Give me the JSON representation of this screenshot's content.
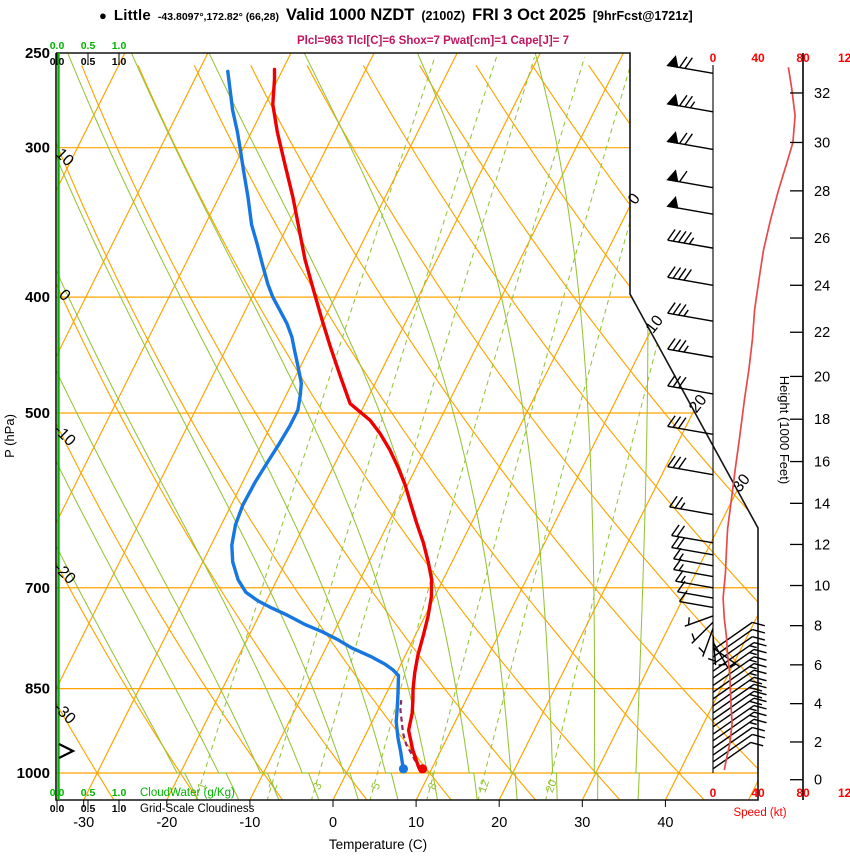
{
  "header": {
    "station": {
      "bullet": "●",
      "name": "Little",
      "coords": "-43.8097°,172.82° (66,28)"
    },
    "valid": {
      "main": "Valid 1000 NZDT",
      "zulu": "(2100Z)",
      "date": "FRI 3 Oct 2025",
      "fcst": "[9hrFcst@1721z]"
    },
    "params": "Plcl=963 Tlcl[C]=6 Shox=7 Pwat[cm]=1 Cape[J]= 7"
  },
  "colors": {
    "isolines": "#FFA400",
    "moist": "#94C436",
    "mixing": "#94C436",
    "cloudwater": "#00B400",
    "frame": "#141414",
    "temperature": "#EE0000",
    "dewpoint": "#1777E0",
    "parcel": "#8A2860",
    "speed_curve": "#E84A4A",
    "speed_text": "#FF0000",
    "magenta": "#C2155F"
  },
  "axes": {
    "pressure": {
      "label": "P (hPa)",
      "ticks": [
        250,
        300,
        400,
        500,
        700,
        850,
        1000
      ]
    },
    "temperature": {
      "label": "Temperature (C)",
      "ticks": [
        -30,
        -20,
        -10,
        0,
        10,
        20,
        30,
        40
      ]
    },
    "height": {
      "label": "Height (1000 Feet)",
      "ticks": [
        [
          0,
          1013
        ],
        [
          2,
          942
        ],
        [
          4,
          875
        ],
        [
          6,
          812
        ],
        [
          8,
          753
        ],
        [
          10,
          697
        ],
        [
          12,
          644
        ],
        [
          14,
          595
        ],
        [
          16,
          549
        ],
        [
          18,
          506
        ],
        [
          20,
          466
        ],
        [
          22,
          428
        ],
        [
          24,
          391
        ],
        [
          26,
          357
        ],
        [
          28,
          326
        ],
        [
          30,
          297
        ],
        [
          32,
          270
        ]
      ]
    },
    "speed": {
      "label": "Speed (kt)",
      "ticks": [
        0,
        40,
        80,
        120
      ]
    },
    "cloud_top": {
      "green": [
        "0.0",
        "0.5",
        "1.0"
      ],
      "black": [
        "0.0",
        "0.5",
        "1.0"
      ]
    },
    "cloud_bottom": {
      "green": [
        "0.0",
        "0.5",
        "1.0"
      ],
      "black": [
        "0.0",
        "0.5",
        "1.0"
      ],
      "green_label": "CloudWater (g/Kg)",
      "black_label": "Grid-Scale Cloudiness"
    },
    "surface_marker": ">"
  },
  "chart_data": {
    "type": "skewt_log_p_sounding",
    "pressure_axis_hpa": [
      250,
      1053
    ],
    "temperature_axis_c": [
      -33,
      51
    ],
    "grid": {
      "isobars_hpa": [
        300,
        400,
        500,
        700,
        850,
        1000
      ],
      "isotherms_c": {
        "min": -100,
        "max": 50,
        "step": 10
      },
      "dry_adiabats_c": {
        "min": -30,
        "max": 110,
        "step": 10
      },
      "moist_adiabats_c": {
        "min": -20,
        "max": 35,
        "step": 5
      },
      "mixing_ratio_g_kg": [
        1,
        2,
        3,
        5,
        8,
        12,
        20
      ],
      "isotherm_edge_labels_c": [
        0,
        10,
        20,
        30
      ],
      "dry_adiabat_edge_labels_c": [
        10,
        0,
        -10,
        -20,
        -30
      ]
    },
    "temperature_profile": [
      [
        990,
        8.4
      ],
      [
        957,
        6.6
      ],
      [
        921,
        4.9
      ],
      [
        891,
        4.3
      ],
      [
        869,
        3.6
      ],
      [
        852,
        3.0
      ],
      [
        825,
        2.2
      ],
      [
        797,
        1.5
      ],
      [
        769,
        1.0
      ],
      [
        740,
        0.4
      ],
      [
        712,
        -0.4
      ],
      [
        689,
        -1.4
      ],
      [
        667,
        -2.8
      ],
      [
        642,
        -4.6
      ],
      [
        618,
        -6.6
      ],
      [
        594,
        -8.6
      ],
      [
        574,
        -10.3
      ],
      [
        555,
        -12.2
      ],
      [
        537,
        -14.2
      ],
      [
        520,
        -16.4
      ],
      [
        507,
        -18.4
      ],
      [
        491,
        -21.8
      ],
      [
        466,
        -24.6
      ],
      [
        440,
        -27.6
      ],
      [
        418,
        -30.2
      ],
      [
        394,
        -33.1
      ],
      [
        372,
        -35.9
      ],
      [
        352,
        -38.3
      ],
      [
        330,
        -41.1
      ],
      [
        310,
        -44.0
      ],
      [
        291,
        -46.9
      ],
      [
        276,
        -49.1
      ],
      [
        263,
        -50.4
      ],
      [
        258,
        -51.0
      ]
    ],
    "dewpoint_profile": [
      [
        990,
        6.5
      ],
      [
        959,
        5.2
      ],
      [
        935,
        4.1
      ],
      [
        906,
        2.9
      ],
      [
        876,
        2.0
      ],
      [
        852,
        1.2
      ],
      [
        829,
        0.4
      ],
      [
        820,
        -0.6
      ],
      [
        811,
        -1.9
      ],
      [
        800,
        -3.9
      ],
      [
        786,
        -6.9
      ],
      [
        774,
        -9.0
      ],
      [
        762,
        -11.4
      ],
      [
        751,
        -14.0
      ],
      [
        738,
        -16.6
      ],
      [
        728,
        -18.9
      ],
      [
        718,
        -21.0
      ],
      [
        706,
        -23.0
      ],
      [
        689,
        -24.7
      ],
      [
        666,
        -26.4
      ],
      [
        645,
        -27.5
      ],
      [
        620,
        -28.3
      ],
      [
        597,
        -28.6
      ],
      [
        571,
        -28.5
      ],
      [
        549,
        -28.2
      ],
      [
        530,
        -27.9
      ],
      [
        512,
        -27.7
      ],
      [
        497,
        -27.7
      ],
      [
        483,
        -28.3
      ],
      [
        472,
        -28.9
      ],
      [
        455,
        -30.5
      ],
      [
        443,
        -31.7
      ],
      [
        432,
        -32.8
      ],
      [
        421,
        -34.2
      ],
      [
        410,
        -35.9
      ],
      [
        400,
        -37.5
      ],
      [
        390,
        -38.9
      ],
      [
        375,
        -40.8
      ],
      [
        361,
        -42.6
      ],
      [
        348,
        -44.4
      ],
      [
        330,
        -46.5
      ],
      [
        313,
        -48.7
      ],
      [
        301,
        -50.3
      ],
      [
        291,
        -51.7
      ],
      [
        279,
        -53.6
      ],
      [
        259,
        -56.5
      ]
    ],
    "parcel_path": [
      [
        992,
        8.5
      ],
      [
        967,
        6.9
      ],
      [
        947,
        5.5
      ],
      [
        926,
        4.4
      ],
      [
        902,
        3.4
      ],
      [
        886,
        2.7
      ],
      [
        869,
        2.2
      ]
    ],
    "surface_temp_dot": [
      992,
      8.9
    ],
    "surface_dewpoint_dot": [
      992,
      6.6
    ],
    "wind_speed_profile_kt": [
      [
        257,
        67
      ],
      [
        268,
        70
      ],
      [
        282,
        73
      ],
      [
        297,
        71
      ],
      [
        308,
        66
      ],
      [
        326,
        58
      ],
      [
        345,
        51
      ],
      [
        365,
        45
      ],
      [
        386,
        41
      ],
      [
        410,
        37
      ],
      [
        434,
        35
      ],
      [
        459,
        32
      ],
      [
        487,
        28
      ],
      [
        521,
        24
      ],
      [
        555,
        20
      ],
      [
        594,
        16
      ],
      [
        625,
        13
      ],
      [
        650,
        12
      ],
      [
        681,
        11
      ],
      [
        714,
        9
      ],
      [
        743,
        10
      ],
      [
        770,
        12
      ],
      [
        797,
        13
      ],
      [
        828,
        15
      ],
      [
        877,
        16
      ],
      [
        909,
        17
      ],
      [
        944,
        15
      ],
      [
        973,
        12
      ],
      [
        994,
        10
      ]
    ],
    "wind_barbs": [
      [
        260,
        170,
        1,
        2,
        0,
        46
      ],
      [
        280,
        170,
        1,
        2,
        1,
        46
      ],
      [
        301,
        170,
        1,
        2,
        0,
        46
      ],
      [
        324,
        170,
        1,
        1,
        0,
        46
      ],
      [
        341,
        170,
        1,
        0,
        0,
        46
      ],
      [
        364,
        170,
        0,
        4,
        1,
        46
      ],
      [
        391,
        170,
        0,
        4,
        0,
        46
      ],
      [
        419,
        170,
        0,
        3,
        1,
        46
      ],
      [
        449,
        170,
        0,
        3,
        1,
        46
      ],
      [
        482,
        170,
        0,
        3,
        0,
        46
      ],
      [
        521,
        170,
        0,
        3,
        0,
        46
      ],
      [
        563,
        170,
        0,
        3,
        0,
        46
      ],
      [
        608,
        170,
        0,
        2,
        1,
        44
      ],
      [
        642,
        170,
        0,
        2,
        0,
        42
      ],
      [
        657,
        170,
        0,
        2,
        0,
        42
      ],
      [
        671,
        170,
        0,
        1,
        1,
        40
      ],
      [
        685,
        170,
        0,
        1,
        1,
        40
      ],
      [
        700,
        170,
        0,
        1,
        1,
        38
      ],
      [
        714,
        170,
        0,
        1,
        0,
        36
      ],
      [
        727,
        170,
        0,
        1,
        0,
        34
      ],
      [
        739,
        200,
        0,
        0,
        1,
        30
      ],
      [
        748,
        225,
        0,
        0,
        1,
        30
      ],
      [
        757,
        250,
        0,
        0,
        1,
        30
      ],
      [
        767,
        275,
        0,
        0,
        1,
        30
      ],
      [
        777,
        300,
        0,
        0,
        1,
        30
      ],
      [
        786,
        325,
        0,
        0,
        1,
        32
      ],
      [
        789,
        35,
        0,
        1,
        0,
        48
      ],
      [
        800,
        35,
        0,
        1,
        0,
        48
      ],
      [
        811,
        35,
        0,
        1,
        0,
        48
      ],
      [
        822,
        35,
        0,
        1,
        1,
        50
      ],
      [
        833,
        35,
        0,
        1,
        1,
        50
      ],
      [
        845,
        35,
        0,
        1,
        1,
        50
      ],
      [
        856,
        35,
        0,
        1,
        1,
        50
      ],
      [
        867,
        35,
        0,
        1,
        1,
        50
      ],
      [
        879,
        35,
        0,
        2,
        0,
        50
      ],
      [
        891,
        35,
        0,
        2,
        0,
        50
      ],
      [
        903,
        35,
        0,
        2,
        0,
        50
      ],
      [
        915,
        35,
        0,
        2,
        0,
        50
      ],
      [
        928,
        35,
        0,
        1,
        1,
        50
      ],
      [
        940,
        35,
        0,
        1,
        1,
        50
      ],
      [
        953,
        35,
        0,
        1,
        1,
        50
      ],
      [
        966,
        35,
        0,
        1,
        0,
        48
      ],
      [
        979,
        35,
        0,
        1,
        0,
        48
      ],
      [
        992,
        35,
        0,
        1,
        0,
        46
      ]
    ]
  }
}
